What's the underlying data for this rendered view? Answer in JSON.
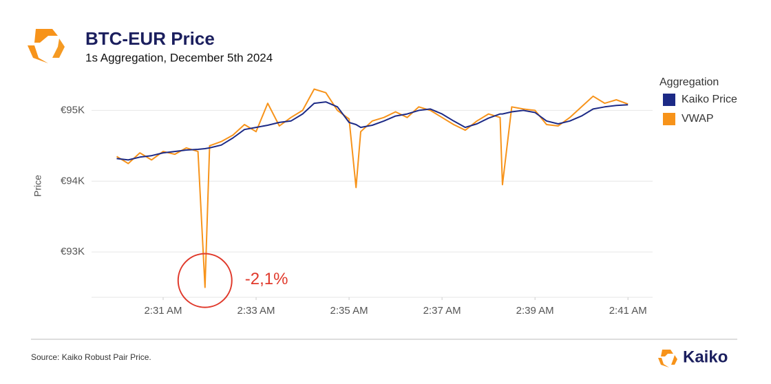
{
  "chart_data": {
    "type": "line",
    "title": "BTC-EUR Price",
    "subtitle": "1s Aggregation, December 5th 2024",
    "y_label": "Price",
    "legend_title": "Aggregation",
    "legend": "right",
    "grid": true,
    "annotation": "-2,1%",
    "source": "Source: Kaiko Robust Pair Price.",
    "brand": "Kaiko",
    "x": [
      150.0,
      150.25,
      150.5,
      150.75,
      151.0,
      151.25,
      151.5,
      151.75,
      151.9,
      152.0,
      152.25,
      152.5,
      152.75,
      153.0,
      153.25,
      153.5,
      153.75,
      154.0,
      154.25,
      154.5,
      154.75,
      155.0,
      155.15,
      155.25,
      155.5,
      155.75,
      156.0,
      156.25,
      156.5,
      156.75,
      157.0,
      157.25,
      157.5,
      157.75,
      158.0,
      158.25,
      158.3,
      158.5,
      158.75,
      159.0,
      159.25,
      159.5,
      159.75,
      160.0,
      160.25,
      160.5,
      160.75,
      161.0
    ],
    "xlim": [
      149.46,
      161.53
    ],
    "xticks": [
      {
        "value": 151,
        "label": "2:31 AM"
      },
      {
        "value": 153,
        "label": "2:33 AM"
      },
      {
        "value": 155,
        "label": "2:35 AM"
      },
      {
        "value": 157,
        "label": "2:37 AM"
      },
      {
        "value": 159,
        "label": "2:39 AM"
      },
      {
        "value": 161,
        "label": "2:41 AM"
      }
    ],
    "ylim": [
      92360,
      95490
    ],
    "yticks": [
      {
        "value": 93000,
        "label": "€93K"
      },
      {
        "value": 94000,
        "label": "€94K"
      },
      {
        "value": 95000,
        "label": "€95K"
      }
    ],
    "series": [
      {
        "name": "VWAP",
        "color": "#f7931a",
        "values": [
          94350,
          94250,
          94400,
          94300,
          94420,
          94380,
          94470,
          94420,
          92500,
          94500,
          94560,
          94650,
          94800,
          94700,
          95100,
          94780,
          94900,
          95000,
          95300,
          95250,
          95000,
          94880,
          93910,
          94700,
          94850,
          94900,
          94980,
          94900,
          95050,
          95000,
          94900,
          94800,
          94720,
          94850,
          94950,
          94900,
          93950,
          95050,
          95020,
          95000,
          94800,
          94780,
          94900,
          95050,
          95200,
          95100,
          95150,
          95090
        ]
      },
      {
        "name": "Kaiko Price",
        "color": "#1c2a86",
        "values": [
          94320,
          94300,
          94340,
          94360,
          94400,
          94420,
          94440,
          94450,
          94460,
          94470,
          94510,
          94610,
          94730,
          94760,
          94790,
          94830,
          94850,
          94950,
          95100,
          95120,
          95050,
          94830,
          94800,
          94760,
          94790,
          94850,
          94920,
          94950,
          95000,
          95020,
          94950,
          94850,
          94760,
          94810,
          94890,
          94950,
          94950,
          94980,
          95000,
          94970,
          94850,
          94810,
          94850,
          94920,
          95020,
          95050,
          95070,
          95080
        ]
      }
    ]
  }
}
